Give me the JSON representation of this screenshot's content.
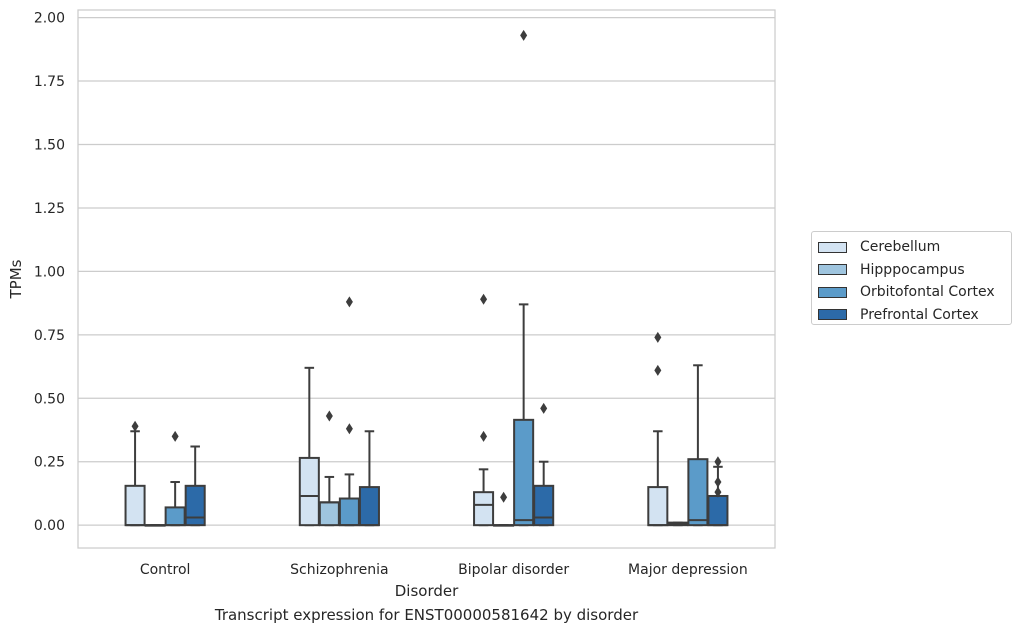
{
  "caption": "Transcript expression for ENST00000581642 by disorder",
  "chart_data": {
    "type": "box",
    "xlabel": "Disorder",
    "ylabel": "TPMs",
    "ylim": [
      -0.09,
      2.03
    ],
    "yticks": [
      "0.00",
      "0.25",
      "0.50",
      "0.75",
      "1.00",
      "1.25",
      "1.50",
      "1.75",
      "2.00"
    ],
    "grid": "horizontal",
    "legend_placement": "outside-right",
    "categories": [
      "Control",
      "Schizophrenia",
      "Bipolar disorder",
      "Major depression"
    ],
    "series": [
      {
        "name": "Cerebellum",
        "color": "#d3e3f2",
        "boxes": [
          {
            "q1": 0.0,
            "median": 0.0,
            "q3": 0.155,
            "whisker_low": 0.0,
            "whisker_high": 0.37,
            "outliers": [
              0.39
            ]
          },
          {
            "q1": 0.0,
            "median": 0.115,
            "q3": 0.265,
            "whisker_low": 0.0,
            "whisker_high": 0.62,
            "outliers": []
          },
          {
            "q1": 0.0,
            "median": 0.08,
            "q3": 0.13,
            "whisker_low": 0.0,
            "whisker_high": 0.22,
            "outliers": [
              0.35,
              0.89
            ]
          },
          {
            "q1": 0.0,
            "median": 0.0,
            "q3": 0.15,
            "whisker_low": 0.0,
            "whisker_high": 0.37,
            "outliers": [
              0.61,
              0.74
            ]
          }
        ]
      },
      {
        "name": "Hipppocampus",
        "color": "#9fc5df",
        "boxes": [
          {
            "q1": 0.0,
            "median": 0.0,
            "q3": 0.0,
            "whisker_low": 0.0,
            "whisker_high": 0.0,
            "outliers": []
          },
          {
            "q1": 0.0,
            "median": 0.09,
            "q3": 0.09,
            "whisker_low": 0.0,
            "whisker_high": 0.19,
            "outliers": [
              0.43
            ]
          },
          {
            "q1": 0.0,
            "median": 0.0,
            "q3": 0.0,
            "whisker_low": 0.0,
            "whisker_high": 0.0,
            "outliers": [
              0.11
            ]
          },
          {
            "q1": 0.0,
            "median": 0.005,
            "q3": 0.01,
            "whisker_low": 0.0,
            "whisker_high": 0.01,
            "outliers": []
          }
        ]
      },
      {
        "name": "Orbitofontal Cortex",
        "color": "#5b9bc9",
        "boxes": [
          {
            "q1": 0.0,
            "median": 0.0,
            "q3": 0.07,
            "whisker_low": 0.0,
            "whisker_high": 0.17,
            "outliers": [
              0.35
            ]
          },
          {
            "q1": 0.0,
            "median": 0.0,
            "q3": 0.105,
            "whisker_low": 0.0,
            "whisker_high": 0.2,
            "outliers": [
              0.38,
              0.88
            ]
          },
          {
            "q1": 0.0,
            "median": 0.02,
            "q3": 0.415,
            "whisker_low": 0.0,
            "whisker_high": 0.87,
            "outliers": [
              1.93
            ]
          },
          {
            "q1": 0.0,
            "median": 0.02,
            "q3": 0.26,
            "whisker_low": 0.0,
            "whisker_high": 0.63,
            "outliers": []
          }
        ]
      },
      {
        "name": "Prefrontal Cortex",
        "color": "#2c6aa8",
        "boxes": [
          {
            "q1": 0.0,
            "median": 0.03,
            "q3": 0.155,
            "whisker_low": 0.0,
            "whisker_high": 0.31,
            "outliers": []
          },
          {
            "q1": 0.0,
            "median": 0.0,
            "q3": 0.15,
            "whisker_low": 0.0,
            "whisker_high": 0.37,
            "outliers": []
          },
          {
            "q1": 0.0,
            "median": 0.03,
            "q3": 0.155,
            "whisker_low": 0.0,
            "whisker_high": 0.25,
            "outliers": [
              0.46
            ]
          },
          {
            "q1": 0.0,
            "median": 0.0,
            "q3": 0.115,
            "whisker_low": 0.0,
            "whisker_high": 0.23,
            "outliers": [
              0.13,
              0.17,
              0.25
            ]
          }
        ]
      }
    ]
  }
}
